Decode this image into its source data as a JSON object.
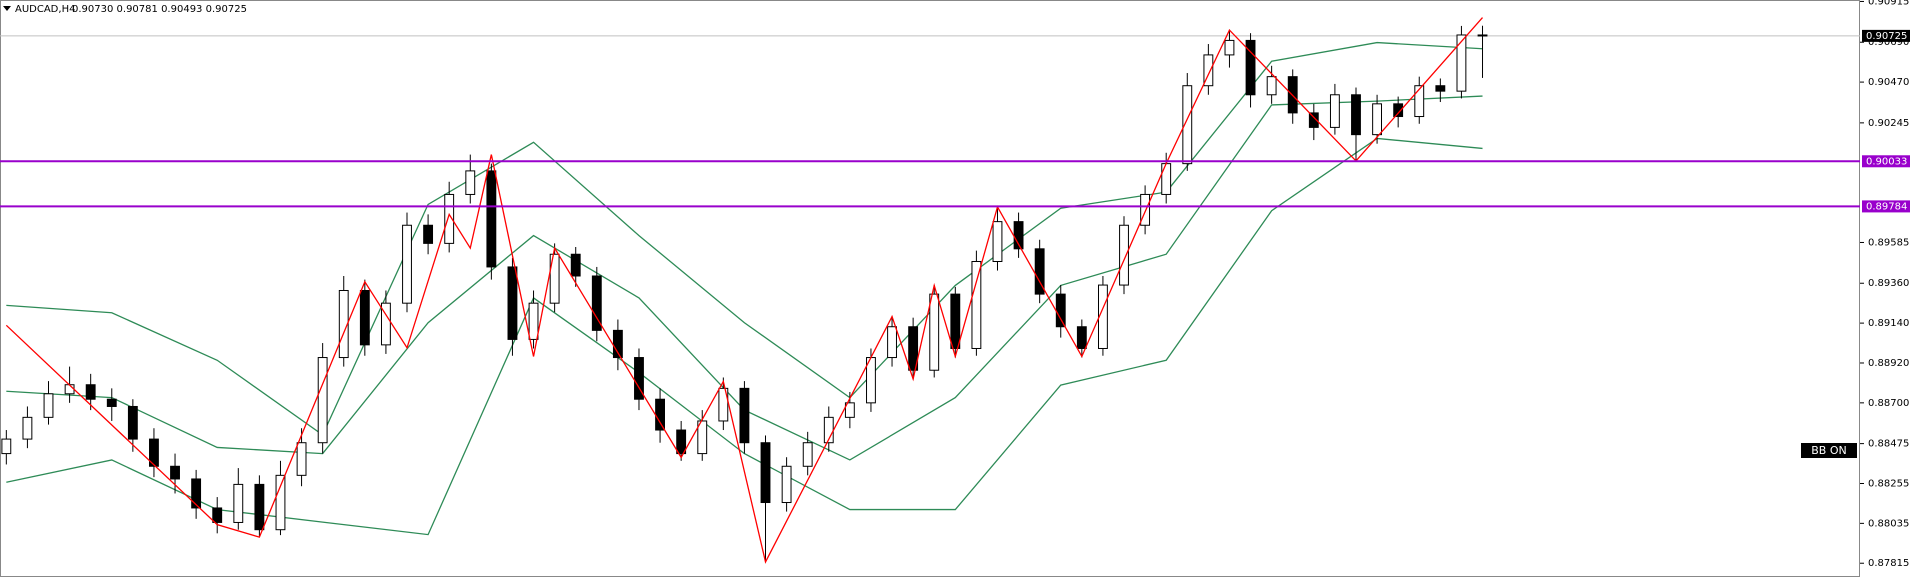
{
  "chart_data": {
    "type": "candlestick",
    "title": "AUDCAD,H4",
    "ohlc_header": "0.90730 0.90781 0.90493 0.90725",
    "xlim": [
      -0.3,
      87.9
    ],
    "ylim": [
      0.87739,
      0.90923
    ],
    "yticks": [
      {
        "value": 0.90915,
        "label": "0.90915"
      },
      {
        "value": 0.9069,
        "label": "0.90690"
      },
      {
        "value": 0.9047,
        "label": "0.90470"
      },
      {
        "value": 0.90245,
        "label": "0.90245"
      },
      {
        "value": 0.89585,
        "label": "0.89585"
      },
      {
        "value": 0.8936,
        "label": "0.89360"
      },
      {
        "value": 0.8914,
        "label": "0.89140"
      },
      {
        "value": 0.8892,
        "label": "0.88920"
      },
      {
        "value": 0.887,
        "label": "0.88700"
      },
      {
        "value": 0.88475,
        "label": "0.88475"
      },
      {
        "value": 0.88255,
        "label": "0.88255"
      },
      {
        "value": 0.88035,
        "label": "0.88035"
      },
      {
        "value": 0.87815,
        "label": "0.87815"
      }
    ],
    "up_color": "#ffffff",
    "down_color": "#000000",
    "ohlc": [
      [
        0.8842,
        0.8855,
        0.8836,
        0.885
      ],
      [
        0.885,
        0.8868,
        0.8845,
        0.8862
      ],
      [
        0.8862,
        0.8882,
        0.8858,
        0.8875
      ],
      [
        0.8875,
        0.889,
        0.887,
        0.888
      ],
      [
        0.888,
        0.8886,
        0.8866,
        0.8872
      ],
      [
        0.8872,
        0.8878,
        0.886,
        0.8868
      ],
      [
        0.8868,
        0.8872,
        0.8843,
        0.885
      ],
      [
        0.885,
        0.8856,
        0.8829,
        0.8835
      ],
      [
        0.8835,
        0.8842,
        0.882,
        0.8828
      ],
      [
        0.8828,
        0.8833,
        0.8806,
        0.8812
      ],
      [
        0.8812,
        0.8818,
        0.8798,
        0.8804
      ],
      [
        0.8804,
        0.8834,
        0.88,
        0.8825
      ],
      [
        0.8825,
        0.883,
        0.8796,
        0.88
      ],
      [
        0.88,
        0.8838,
        0.8797,
        0.883
      ],
      [
        0.883,
        0.8856,
        0.8824,
        0.8848
      ],
      [
        0.8848,
        0.8903,
        0.8842,
        0.8895
      ],
      [
        0.8895,
        0.894,
        0.889,
        0.8932
      ],
      [
        0.8932,
        0.8938,
        0.8896,
        0.8902
      ],
      [
        0.8902,
        0.8932,
        0.8897,
        0.8925
      ],
      [
        0.8925,
        0.8975,
        0.892,
        0.8968
      ],
      [
        0.8968,
        0.8974,
        0.8952,
        0.8958
      ],
      [
        0.8958,
        0.8992,
        0.8953,
        0.8985
      ],
      [
        0.8985,
        0.9007,
        0.898,
        0.8998
      ],
      [
        0.8998,
        0.9002,
        0.8938,
        0.8945
      ],
      [
        0.8945,
        0.895,
        0.8896,
        0.8905
      ],
      [
        0.8905,
        0.8932,
        0.89,
        0.8925
      ],
      [
        0.8925,
        0.8958,
        0.892,
        0.8952
      ],
      [
        0.8952,
        0.8956,
        0.8934,
        0.894
      ],
      [
        0.894,
        0.8945,
        0.8904,
        0.891
      ],
      [
        0.891,
        0.8916,
        0.8888,
        0.8895
      ],
      [
        0.8895,
        0.89,
        0.8866,
        0.8872
      ],
      [
        0.8872,
        0.8878,
        0.8848,
        0.8855
      ],
      [
        0.8855,
        0.886,
        0.8838,
        0.8842
      ],
      [
        0.8842,
        0.8866,
        0.8838,
        0.886
      ],
      [
        0.886,
        0.8884,
        0.8855,
        0.8878
      ],
      [
        0.8878,
        0.8882,
        0.8842,
        0.8848
      ],
      [
        0.8848,
        0.8852,
        0.8783,
        0.8815
      ],
      [
        0.8815,
        0.884,
        0.881,
        0.8835
      ],
      [
        0.8835,
        0.8854,
        0.883,
        0.8848
      ],
      [
        0.8848,
        0.8868,
        0.8843,
        0.8862
      ],
      [
        0.8862,
        0.8876,
        0.8856,
        0.887
      ],
      [
        0.887,
        0.89,
        0.8865,
        0.8895
      ],
      [
        0.8895,
        0.8918,
        0.889,
        0.8912
      ],
      [
        0.8912,
        0.8917,
        0.8883,
        0.8888
      ],
      [
        0.8888,
        0.8935,
        0.8884,
        0.893
      ],
      [
        0.893,
        0.8934,
        0.8895,
        0.89
      ],
      [
        0.89,
        0.8954,
        0.8896,
        0.8948
      ],
      [
        0.8948,
        0.8978,
        0.8943,
        0.897
      ],
      [
        0.897,
        0.8975,
        0.895,
        0.8955
      ],
      [
        0.8955,
        0.896,
        0.8925,
        0.893
      ],
      [
        0.893,
        0.8935,
        0.8906,
        0.8912
      ],
      [
        0.8912,
        0.8916,
        0.8895,
        0.89
      ],
      [
        0.89,
        0.894,
        0.8896,
        0.8935
      ],
      [
        0.8935,
        0.8973,
        0.893,
        0.8968
      ],
      [
        0.8968,
        0.899,
        0.8963,
        0.8985
      ],
      [
        0.8985,
        0.9008,
        0.898,
        0.9002
      ],
      [
        0.9002,
        0.9052,
        0.8998,
        0.9045
      ],
      [
        0.9045,
        0.9068,
        0.904,
        0.9062
      ],
      [
        0.9062,
        0.9076,
        0.9055,
        0.907
      ],
      [
        0.907,
        0.9074,
        0.9033,
        0.904
      ],
      [
        0.904,
        0.9056,
        0.9035,
        0.905
      ],
      [
        0.905,
        0.9054,
        0.9024,
        0.903
      ],
      [
        0.903,
        0.9035,
        0.9015,
        0.9022
      ],
      [
        0.9022,
        0.9046,
        0.9018,
        0.904
      ],
      [
        0.904,
        0.9044,
        0.9004,
        0.9018
      ],
      [
        0.9018,
        0.904,
        0.9013,
        0.9035
      ],
      [
        0.9035,
        0.9039,
        0.9022,
        0.9028
      ],
      [
        0.9028,
        0.905,
        0.9024,
        0.9045
      ],
      [
        0.9045,
        0.9049,
        0.9036,
        0.9042
      ],
      [
        0.9042,
        0.9078,
        0.9038,
        0.9073
      ],
      [
        0.9073,
        0.90781,
        0.90493,
        0.90725
      ]
    ],
    "bands": {
      "x": [
        0,
        5,
        10,
        15,
        20,
        25,
        30,
        35,
        40,
        45,
        50,
        55,
        60,
        65,
        70
      ],
      "series": [
        {
          "color": "#2e8b57",
          "values": [
            0.89238,
            0.89197,
            0.88935,
            0.88523,
            0.89795,
            0.90138,
            0.89623,
            0.89142,
            0.88729,
            0.89348,
            0.89774,
            0.89863,
            0.90585,
            0.90688,
            0.90654
          ]
        },
        {
          "color": "#2e8b57",
          "values": [
            0.88764,
            0.88729,
            0.88454,
            0.8842,
            0.89142,
            0.89623,
            0.89279,
            0.8866,
            0.88385,
            0.88729,
            0.89348,
            0.8952,
            0.90344,
            0.90365,
            0.90393
          ]
        },
        {
          "color": "#2e8b57",
          "values": [
            0.88262,
            0.88385,
            0.88111,
            0.88042,
            0.87973,
            0.89279,
            0.88867,
            0.8842,
            0.88111,
            0.88111,
            0.88798,
            0.88935,
            0.8976,
            0.90159,
            0.90104
          ]
        }
      ]
    },
    "zigzag": {
      "color": "#ff0000",
      "x": [
        0,
        10,
        12,
        17,
        19,
        21,
        22,
        23,
        25,
        26,
        32,
        34,
        36,
        42,
        43,
        44,
        45,
        47,
        51,
        55,
        58,
        64,
        70
      ],
      "values": [
        0.89128,
        0.88028,
        0.87959,
        0.89368,
        0.89004,
        0.8974,
        0.89554,
        0.9007,
        0.88956,
        0.89554,
        0.88399,
        0.88818,
        0.87822,
        0.89176,
        0.88832,
        0.89348,
        0.88956,
        0.89781,
        0.88956,
        0.90021,
        0.90757,
        0.90035,
        0.90826
      ]
    },
    "levels": [
      {
        "value": 0.90033,
        "label": "0.90033",
        "color": "#9900cc"
      },
      {
        "value": 0.89784,
        "label": "0.89784",
        "color": "#9900cc"
      }
    ],
    "current_price": {
      "value": 0.90725,
      "label": "0.90725",
      "color": "#c0c0c0"
    },
    "indicator_label": "BB ON"
  }
}
